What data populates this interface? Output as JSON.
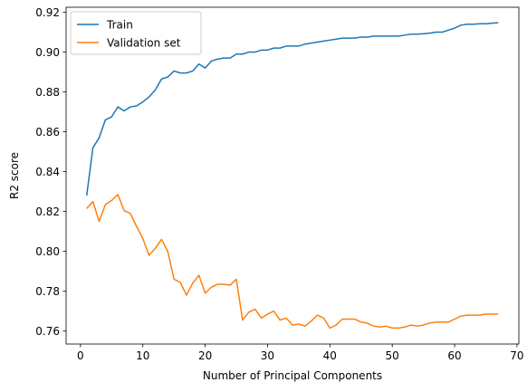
{
  "chart_data": {
    "type": "line",
    "xlabel": "Number of Principal Components",
    "ylabel": "R2 score",
    "xlim": [
      -2.3,
      70.3
    ],
    "ylim": [
      0.7535,
      0.9225
    ],
    "xticks": [
      0,
      10,
      20,
      30,
      40,
      50,
      60,
      70
    ],
    "yticks": [
      0.76,
      0.78,
      0.8,
      0.82,
      0.84,
      0.86,
      0.88,
      0.9,
      0.92
    ],
    "ytick_labels": [
      "0.76",
      "0.78",
      "0.80",
      "0.82",
      "0.84",
      "0.86",
      "0.88",
      "0.90",
      "0.92"
    ],
    "grid": false,
    "legend_position": "top-left",
    "series": [
      {
        "name": "Train",
        "color": "#1f77b4",
        "x": [
          1,
          2,
          3,
          4,
          5,
          6,
          7,
          8,
          9,
          10,
          11,
          12,
          13,
          14,
          15,
          16,
          17,
          18,
          19,
          20,
          21,
          22,
          23,
          24,
          25,
          26,
          27,
          28,
          29,
          30,
          31,
          32,
          33,
          34,
          35,
          36,
          37,
          38,
          39,
          40,
          41,
          42,
          43,
          44,
          45,
          46,
          47,
          48,
          49,
          50,
          51,
          52,
          53,
          54,
          55,
          56,
          57,
          58,
          59,
          60,
          61,
          62,
          63,
          64,
          65,
          66,
          67
        ],
        "values": [
          0.828,
          0.852,
          0.857,
          0.866,
          0.8675,
          0.8725,
          0.8705,
          0.8725,
          0.873,
          0.875,
          0.8775,
          0.881,
          0.8865,
          0.8875,
          0.8905,
          0.8895,
          0.8895,
          0.8905,
          0.894,
          0.892,
          0.8955,
          0.8965,
          0.897,
          0.897,
          0.899,
          0.899,
          0.9,
          0.9,
          0.901,
          0.901,
          0.902,
          0.902,
          0.903,
          0.903,
          0.903,
          0.904,
          0.9045,
          0.905,
          0.9055,
          0.906,
          0.9065,
          0.907,
          0.907,
          0.907,
          0.9075,
          0.9075,
          0.908,
          0.908,
          0.908,
          0.908,
          0.908,
          0.9085,
          0.909,
          0.909,
          0.9092,
          0.9095,
          0.91,
          0.91,
          0.911,
          0.912,
          0.9135,
          0.914,
          0.914,
          0.9142,
          0.9142,
          0.9145,
          0.9148
        ]
      },
      {
        "name": "Validation set",
        "color": "#ff7f0e",
        "x": [
          1,
          2,
          3,
          4,
          5,
          6,
          7,
          8,
          9,
          10,
          11,
          12,
          13,
          14,
          15,
          16,
          17,
          18,
          19,
          20,
          21,
          22,
          23,
          24,
          25,
          26,
          27,
          28,
          29,
          30,
          31,
          32,
          33,
          34,
          35,
          36,
          37,
          38,
          39,
          40,
          41,
          42,
          43,
          44,
          45,
          46,
          47,
          48,
          49,
          50,
          51,
          52,
          53,
          54,
          55,
          56,
          57,
          58,
          59,
          60,
          61,
          62,
          63,
          64,
          65,
          66,
          67
        ],
        "values": [
          0.8215,
          0.825,
          0.815,
          0.8235,
          0.8255,
          0.8285,
          0.8205,
          0.819,
          0.8125,
          0.8065,
          0.798,
          0.8015,
          0.806,
          0.8,
          0.786,
          0.7845,
          0.778,
          0.784,
          0.788,
          0.779,
          0.782,
          0.7835,
          0.7835,
          0.783,
          0.786,
          0.7655,
          0.7695,
          0.771,
          0.7665,
          0.7685,
          0.77,
          0.7655,
          0.7665,
          0.763,
          0.7635,
          0.7625,
          0.765,
          0.768,
          0.7665,
          0.7615,
          0.763,
          0.766,
          0.766,
          0.766,
          0.7645,
          0.764,
          0.7625,
          0.762,
          0.7625,
          0.7615,
          0.7615,
          0.762,
          0.763,
          0.7625,
          0.763,
          0.764,
          0.7645,
          0.7645,
          0.7645,
          0.766,
          0.7675,
          0.768,
          0.768,
          0.768,
          0.7685,
          0.7685,
          0.7685
        ]
      }
    ]
  }
}
